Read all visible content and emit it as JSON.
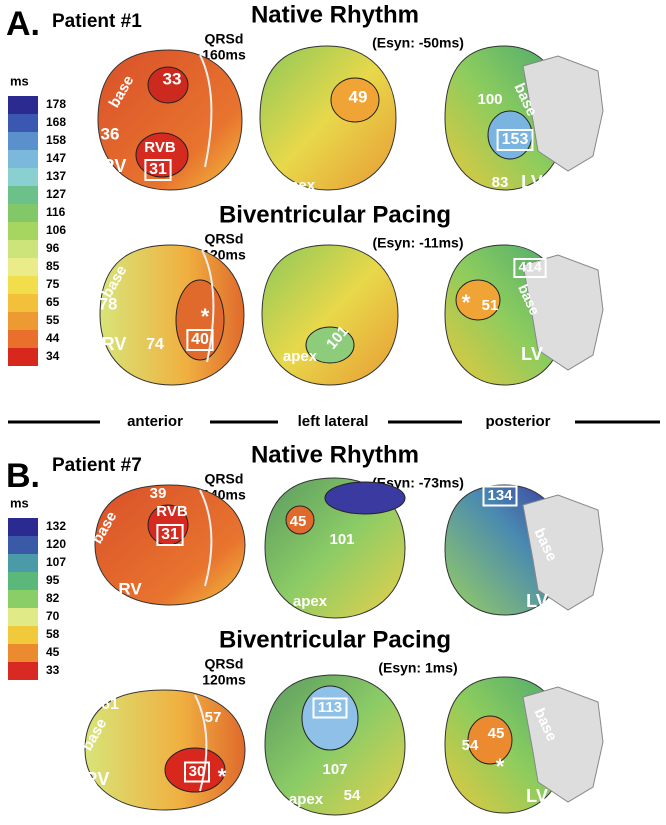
{
  "panels": [
    {
      "label": "A.",
      "patient": "Patient #1",
      "colorbar": {
        "unit": "ms",
        "ticks": [
          178,
          168,
          158,
          147,
          137,
          127,
          116,
          106,
          96,
          85,
          75,
          65,
          55,
          44,
          34
        ]
      },
      "rows": [
        {
          "title": "Native Rhythm",
          "qrsd": "QRSd",
          "qrsd_value": "160ms",
          "esyn": "(Esyn: -50ms)",
          "hearts": [
            {
              "labels": [
                "base",
                "33",
                "36",
                "RVB",
                "31",
                "RV"
              ]
            },
            {
              "labels": [
                "49",
                "apex"
              ]
            },
            {
              "labels": [
                "100",
                "base",
                "153",
                "83",
                "LV"
              ]
            }
          ]
        },
        {
          "title": "Biventricular Pacing",
          "qrsd": "QRSd",
          "qrsd_value": "120ms",
          "esyn": "(Esyn: -11ms)",
          "hearts": [
            {
              "labels": [
                "base",
                "*",
                "40",
                "78",
                "RV",
                "74"
              ]
            },
            {
              "labels": [
                "101",
                "apex"
              ]
            },
            {
              "labels": [
                "414",
                "*",
                "51",
                "base",
                "LV"
              ]
            }
          ]
        }
      ]
    },
    {
      "label": "B.",
      "patient": "Patient #7",
      "colorbar": {
        "unit": "ms",
        "ticks": [
          132,
          120,
          107,
          95,
          82,
          70,
          58,
          45,
          33
        ]
      },
      "rows": [
        {
          "title": "Native Rhythm",
          "qrsd": "QRSd",
          "qrsd_value": "140ms",
          "esyn": "(Esyn: -73ms)",
          "hearts": [
            {
              "labels": [
                "39",
                "RVB",
                "31",
                "base",
                "RV"
              ]
            },
            {
              "labels": [
                "45",
                "101",
                "apex"
              ]
            },
            {
              "labels": [
                "134",
                "base",
                "LV"
              ]
            }
          ]
        },
        {
          "title": "Biventricular Pacing",
          "qrsd": "QRSd",
          "qrsd_value": "120ms",
          "esyn": "(Esyn: 1ms)",
          "hearts": [
            {
              "labels": [
                "61",
                "base",
                "57",
                "RV",
                "30",
                "*"
              ]
            },
            {
              "labels": [
                "113",
                "107",
                "apex",
                "54"
              ]
            },
            {
              "labels": [
                "45",
                "54",
                "*",
                "base",
                "LV"
              ]
            }
          ]
        }
      ]
    }
  ],
  "views": [
    "anterior",
    "left lateral",
    "posterior"
  ]
}
